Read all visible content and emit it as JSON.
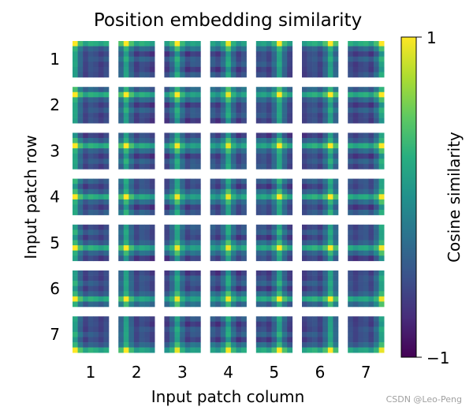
{
  "chart_data": {
    "type": "heatmap",
    "title": "Position embedding similarity",
    "xlabel": "Input patch column",
    "ylabel": "Input patch row",
    "x_tick_labels": [
      "1",
      "2",
      "3",
      "4",
      "5",
      "6",
      "7"
    ],
    "y_tick_labels": [
      "1",
      "2",
      "3",
      "4",
      "5",
      "6",
      "7"
    ],
    "grid_rows": 7,
    "grid_cols": 7,
    "cell_resolution": 7,
    "colormap": "viridis",
    "colorbar": {
      "label": "Cosine similarity",
      "min_label": "−1",
      "max_label": "1",
      "range": [
        -1,
        1
      ]
    },
    "description_values": "Each small tile shows cosine similarity of one patch's position embedding to all 7x7 patches; highest (yellow) along its own row and column."
  },
  "watermark": "CSDN @Leo-Peng"
}
